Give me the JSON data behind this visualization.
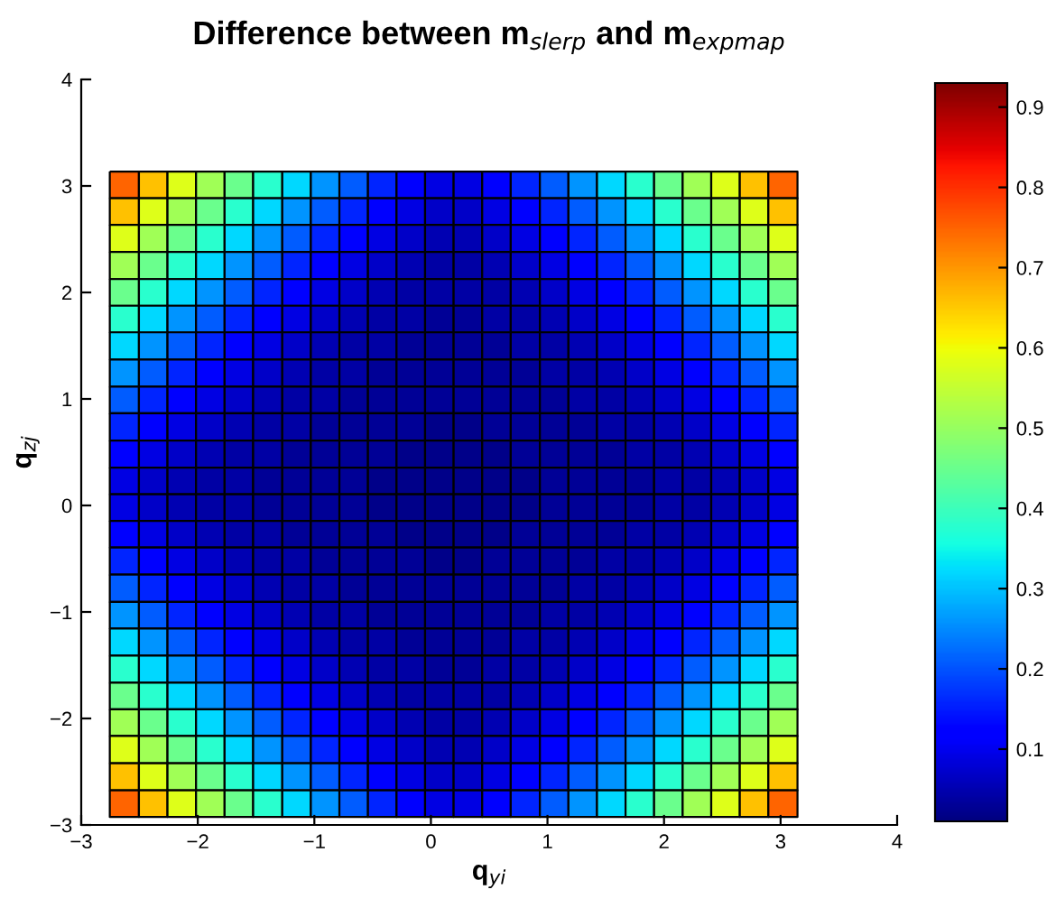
{
  "chart_data": {
    "type": "heatmap",
    "title": "Difference between m$_{slerp}$ and m$_{expmap}$",
    "xlabel": "q$_{yi}$",
    "ylabel": "q$_{zj}$",
    "x": [
      -2.63,
      -2.38,
      -2.14,
      -1.89,
      -1.65,
      -1.4,
      -1.15,
      -0.91,
      -0.66,
      -0.42,
      -0.17,
      0.07,
      0.32,
      0.56,
      0.81,
      1.06,
      1.3,
      1.55,
      1.79,
      2.04,
      2.28,
      2.53,
      2.77,
      3.02
    ],
    "y": [
      3.01,
      2.76,
      2.51,
      2.25,
      2.0,
      1.75,
      1.5,
      1.24,
      0.99,
      0.74,
      0.48,
      0.23,
      -0.02,
      -0.27,
      -0.52,
      -0.78,
      -1.03,
      -1.28,
      -1.54,
      -1.79,
      -2.04,
      -2.29,
      -2.55,
      -2.8
    ],
    "cells": [
      [
        0.75,
        0.66,
        0.58,
        0.51,
        0.45,
        0.38,
        0.32,
        0.26,
        0.21,
        0.16,
        0.12,
        0.09,
        0.09,
        0.12,
        0.16,
        0.21,
        0.26,
        0.32,
        0.38,
        0.45,
        0.51,
        0.58,
        0.66,
        0.75
      ],
      [
        0.66,
        0.58,
        0.51,
        0.45,
        0.38,
        0.32,
        0.26,
        0.21,
        0.16,
        0.12,
        0.09,
        0.07,
        0.07,
        0.09,
        0.12,
        0.16,
        0.21,
        0.26,
        0.32,
        0.38,
        0.45,
        0.51,
        0.58,
        0.66
      ],
      [
        0.58,
        0.51,
        0.45,
        0.38,
        0.32,
        0.26,
        0.21,
        0.16,
        0.12,
        0.09,
        0.07,
        0.05,
        0.05,
        0.07,
        0.09,
        0.12,
        0.16,
        0.21,
        0.26,
        0.32,
        0.38,
        0.45,
        0.51,
        0.58
      ],
      [
        0.51,
        0.45,
        0.38,
        0.32,
        0.26,
        0.21,
        0.16,
        0.12,
        0.09,
        0.07,
        0.05,
        0.04,
        0.04,
        0.05,
        0.07,
        0.09,
        0.12,
        0.16,
        0.21,
        0.26,
        0.32,
        0.38,
        0.45,
        0.51
      ],
      [
        0.45,
        0.38,
        0.32,
        0.26,
        0.21,
        0.16,
        0.12,
        0.09,
        0.07,
        0.05,
        0.04,
        0.04,
        0.04,
        0.04,
        0.05,
        0.07,
        0.09,
        0.12,
        0.16,
        0.21,
        0.26,
        0.32,
        0.38,
        0.45
      ],
      [
        0.38,
        0.32,
        0.26,
        0.21,
        0.16,
        0.12,
        0.09,
        0.07,
        0.05,
        0.04,
        0.04,
        0.03,
        0.03,
        0.04,
        0.04,
        0.05,
        0.07,
        0.09,
        0.12,
        0.16,
        0.21,
        0.26,
        0.32,
        0.38
      ],
      [
        0.32,
        0.26,
        0.21,
        0.16,
        0.12,
        0.09,
        0.07,
        0.05,
        0.04,
        0.04,
        0.03,
        0.03,
        0.03,
        0.03,
        0.04,
        0.04,
        0.05,
        0.07,
        0.09,
        0.12,
        0.16,
        0.21,
        0.26,
        0.32
      ],
      [
        0.26,
        0.21,
        0.16,
        0.12,
        0.09,
        0.07,
        0.05,
        0.04,
        0.04,
        0.03,
        0.03,
        0.03,
        0.03,
        0.03,
        0.03,
        0.04,
        0.04,
        0.05,
        0.07,
        0.09,
        0.12,
        0.16,
        0.21,
        0.26
      ],
      [
        0.21,
        0.16,
        0.12,
        0.09,
        0.07,
        0.05,
        0.04,
        0.04,
        0.03,
        0.03,
        0.03,
        0.03,
        0.03,
        0.03,
        0.03,
        0.03,
        0.04,
        0.04,
        0.05,
        0.07,
        0.09,
        0.12,
        0.16,
        0.21
      ],
      [
        0.16,
        0.12,
        0.09,
        0.07,
        0.05,
        0.04,
        0.04,
        0.03,
        0.03,
        0.03,
        0.03,
        0.02,
        0.02,
        0.03,
        0.03,
        0.03,
        0.03,
        0.04,
        0.04,
        0.05,
        0.07,
        0.09,
        0.12,
        0.16
      ],
      [
        0.12,
        0.09,
        0.07,
        0.05,
        0.04,
        0.04,
        0.03,
        0.03,
        0.03,
        0.03,
        0.02,
        0.02,
        0.02,
        0.02,
        0.03,
        0.03,
        0.03,
        0.03,
        0.04,
        0.04,
        0.05,
        0.07,
        0.09,
        0.12
      ],
      [
        0.09,
        0.07,
        0.05,
        0.04,
        0.04,
        0.03,
        0.03,
        0.03,
        0.03,
        0.02,
        0.02,
        0.02,
        0.02,
        0.02,
        0.02,
        0.03,
        0.03,
        0.03,
        0.03,
        0.04,
        0.04,
        0.05,
        0.07,
        0.09
      ],
      [
        0.09,
        0.07,
        0.05,
        0.04,
        0.04,
        0.03,
        0.03,
        0.03,
        0.03,
        0.02,
        0.02,
        0.02,
        0.02,
        0.02,
        0.02,
        0.03,
        0.03,
        0.03,
        0.03,
        0.04,
        0.04,
        0.05,
        0.07,
        0.09
      ],
      [
        0.12,
        0.09,
        0.07,
        0.05,
        0.04,
        0.04,
        0.03,
        0.03,
        0.03,
        0.03,
        0.02,
        0.02,
        0.02,
        0.02,
        0.03,
        0.03,
        0.03,
        0.03,
        0.04,
        0.04,
        0.05,
        0.07,
        0.09,
        0.12
      ],
      [
        0.16,
        0.12,
        0.09,
        0.07,
        0.05,
        0.04,
        0.04,
        0.03,
        0.03,
        0.03,
        0.03,
        0.02,
        0.02,
        0.03,
        0.03,
        0.03,
        0.03,
        0.04,
        0.04,
        0.05,
        0.07,
        0.09,
        0.12,
        0.16
      ],
      [
        0.21,
        0.16,
        0.12,
        0.09,
        0.07,
        0.05,
        0.04,
        0.04,
        0.03,
        0.03,
        0.03,
        0.03,
        0.03,
        0.03,
        0.03,
        0.03,
        0.04,
        0.04,
        0.05,
        0.07,
        0.09,
        0.12,
        0.16,
        0.21
      ],
      [
        0.26,
        0.21,
        0.16,
        0.12,
        0.09,
        0.07,
        0.05,
        0.04,
        0.04,
        0.03,
        0.03,
        0.03,
        0.03,
        0.03,
        0.03,
        0.04,
        0.04,
        0.05,
        0.07,
        0.09,
        0.12,
        0.16,
        0.21,
        0.26
      ],
      [
        0.32,
        0.26,
        0.21,
        0.16,
        0.12,
        0.09,
        0.07,
        0.05,
        0.04,
        0.04,
        0.03,
        0.03,
        0.03,
        0.03,
        0.04,
        0.04,
        0.05,
        0.07,
        0.09,
        0.12,
        0.16,
        0.21,
        0.26,
        0.32
      ],
      [
        0.38,
        0.32,
        0.26,
        0.21,
        0.16,
        0.12,
        0.09,
        0.07,
        0.05,
        0.04,
        0.04,
        0.03,
        0.03,
        0.04,
        0.04,
        0.05,
        0.07,
        0.09,
        0.12,
        0.16,
        0.21,
        0.26,
        0.32,
        0.38
      ],
      [
        0.45,
        0.38,
        0.32,
        0.26,
        0.21,
        0.16,
        0.12,
        0.09,
        0.07,
        0.05,
        0.04,
        0.04,
        0.04,
        0.04,
        0.05,
        0.07,
        0.09,
        0.12,
        0.16,
        0.21,
        0.26,
        0.32,
        0.38,
        0.45
      ],
      [
        0.51,
        0.45,
        0.38,
        0.32,
        0.26,
        0.21,
        0.16,
        0.12,
        0.09,
        0.07,
        0.05,
        0.04,
        0.04,
        0.05,
        0.07,
        0.09,
        0.12,
        0.16,
        0.21,
        0.26,
        0.32,
        0.38,
        0.45,
        0.51
      ],
      [
        0.58,
        0.51,
        0.45,
        0.38,
        0.32,
        0.26,
        0.21,
        0.16,
        0.12,
        0.09,
        0.07,
        0.05,
        0.05,
        0.07,
        0.09,
        0.12,
        0.16,
        0.21,
        0.26,
        0.32,
        0.38,
        0.45,
        0.51,
        0.58
      ],
      [
        0.66,
        0.58,
        0.51,
        0.45,
        0.38,
        0.32,
        0.26,
        0.21,
        0.16,
        0.12,
        0.09,
        0.07,
        0.07,
        0.09,
        0.12,
        0.16,
        0.21,
        0.26,
        0.32,
        0.38,
        0.45,
        0.51,
        0.58,
        0.66
      ],
      [
        0.75,
        0.66,
        0.58,
        0.51,
        0.45,
        0.38,
        0.32,
        0.26,
        0.21,
        0.16,
        0.12,
        0.09,
        0.09,
        0.12,
        0.16,
        0.21,
        0.26,
        0.32,
        0.38,
        0.45,
        0.51,
        0.58,
        0.66,
        0.75
      ]
    ],
    "xlim": [
      -3,
      4
    ],
    "ylim": [
      -3,
      4
    ],
    "xticks": [
      {
        "value": -3,
        "label": "−3"
      },
      {
        "value": -2,
        "label": "−2"
      },
      {
        "value": -1,
        "label": "−1"
      },
      0,
      1,
      2,
      3,
      4
    ],
    "yticks": [
      {
        "value": -3,
        "label": "−3"
      },
      {
        "value": -2,
        "label": "−2"
      },
      {
        "value": -1,
        "label": "−1"
      },
      0,
      1,
      2,
      3,
      4
    ],
    "clim": [
      0.01,
      0.93
    ],
    "cticks": [
      0.1,
      0.2,
      0.3,
      0.4,
      0.5,
      0.6,
      0.7,
      0.8,
      0.9
    ],
    "grid": false
  }
}
